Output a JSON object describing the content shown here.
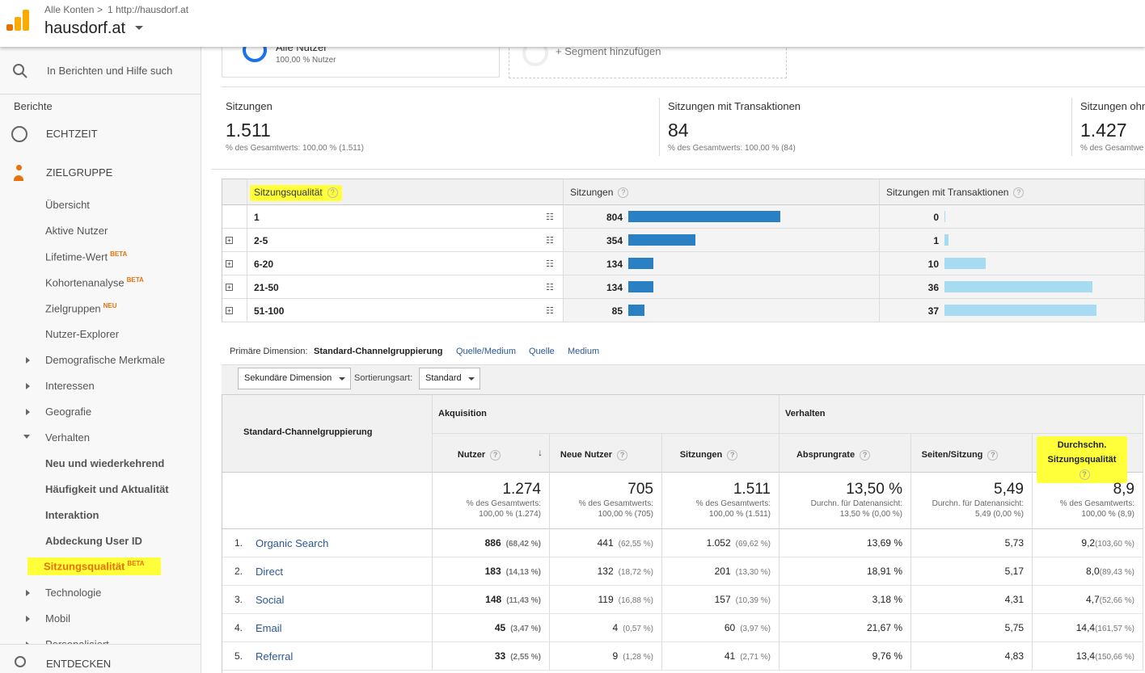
{
  "header": {
    "breadcrumb": [
      "Alle Konten",
      "1 http://hausdorf.at"
    ],
    "property": "hausdorf.at"
  },
  "sidebar": {
    "search_placeholder": "In Berichten und Hilfe such",
    "section": "Berichte",
    "realtime": "ECHTZEIT",
    "audience": {
      "label": "ZIELGRUPPE",
      "items": [
        {
          "label": "Übersicht"
        },
        {
          "label": "Aktive Nutzer"
        },
        {
          "label": "Lifetime-Wert",
          "badge": "BETA"
        },
        {
          "label": "Kohortenanalyse",
          "badge": "BETA"
        },
        {
          "label": "Zielgruppen",
          "badge": "NEU"
        },
        {
          "label": "Nutzer-Explorer"
        }
      ],
      "groups": [
        {
          "label": "Demografische Merkmale"
        },
        {
          "label": "Interessen"
        },
        {
          "label": "Geografie"
        },
        {
          "label": "Verhalten",
          "items": [
            {
              "label": "Neu und wiederkehrend"
            },
            {
              "label": "Häufigkeit und Aktualität"
            },
            {
              "label": "Interaktion"
            },
            {
              "label": "Abdeckung User ID"
            },
            {
              "label": "Sitzungsqualität",
              "badge": "BETA"
            }
          ]
        },
        {
          "label": "Technologie"
        },
        {
          "label": "Mobil"
        },
        {
          "label": "Personalisiert"
        }
      ]
    },
    "discover": "ENTDECKEN"
  },
  "segments": {
    "active": {
      "name": "Alle Nutzer",
      "sub": "100,00 % Nutzer"
    },
    "add": "+ Segment hinzufügen"
  },
  "summary": [
    {
      "label": "Sitzungen",
      "value": "1.511",
      "sub": "% des Gesamtwerts: 100,00 % (1.511)"
    },
    {
      "label": "Sitzungen mit Transaktionen",
      "value": "84",
      "sub": "% des Gesamtwerts: 100,00 % (84)"
    },
    {
      "label": "Sitzungen ohne",
      "value": "1.427",
      "sub": "% des Gesamtwe"
    }
  ],
  "quality_table": {
    "headers": [
      "Sitzungsqualität",
      "Sitzungen",
      "Sitzungen mit Transaktionen"
    ],
    "rows": [
      {
        "label": "1",
        "sessions": 804,
        "transactions": 0
      },
      {
        "label": "2-5",
        "sessions": 354,
        "transactions": 1
      },
      {
        "label": "6-20",
        "sessions": 134,
        "transactions": 10
      },
      {
        "label": "21-50",
        "sessions": 134,
        "transactions": 36
      },
      {
        "label": "51-100",
        "sessions": 85,
        "transactions": 37
      }
    ]
  },
  "primary_dimension": {
    "label": "Primäre Dimension:",
    "options": [
      "Standard-Channelgruppierung",
      "Quelle/Medium",
      "Quelle",
      "Medium"
    ]
  },
  "controls": {
    "secondary": "Sekundäre Dimension",
    "sort_label": "Sortierungsart:",
    "sort_value": "Standard"
  },
  "main_table": {
    "dimension": "Standard-Channelgruppierung",
    "groups": [
      "Akquisition",
      "Verhalten"
    ],
    "columns": [
      "Nutzer",
      "Neue Nutzer",
      "Sitzungen",
      "Absprungrate",
      "Seiten/Sitzung",
      "Durchschn. Sitzungsqualität"
    ],
    "totals": [
      {
        "value": "1.274",
        "sub1": "% des Gesamtwerts:",
        "sub2": "100,00 % (1.274)"
      },
      {
        "value": "705",
        "sub1": "% des Gesamtwerts:",
        "sub2": "100,00 % (705)"
      },
      {
        "value": "1.511",
        "sub1": "% des Gesamtwerts:",
        "sub2": "100,00 % (1.511)"
      },
      {
        "value": "13,50 %",
        "sub1": "Durchn. für Datenansicht:",
        "sub2": "13,50 % (0,00 %)"
      },
      {
        "value": "5,49",
        "sub1": "Durchn. für Datenansicht:",
        "sub2": "5,49 (0,00 %)"
      },
      {
        "value": "8,9",
        "sub1": "% des Gesamtwerts:",
        "sub2": "100,00 % (8,9)"
      }
    ],
    "rows": [
      {
        "index": "1.",
        "name": "Organic Search",
        "cells": [
          {
            "value": "886",
            "pct": "(68,42 %)"
          },
          {
            "value": "441",
            "pct": "(62,55 %)"
          },
          {
            "value": "1.052",
            "pct": "(69,62 %)"
          },
          {
            "value": "13,69 %"
          },
          {
            "value": "5,73"
          },
          {
            "value": "9,2",
            "pct": "(103,60 %)"
          }
        ]
      },
      {
        "index": "2.",
        "name": "Direct",
        "cells": [
          {
            "value": "183",
            "pct": "(14,13 %)"
          },
          {
            "value": "132",
            "pct": "(18,72 %)"
          },
          {
            "value": "201",
            "pct": "(13,30 %)"
          },
          {
            "value": "18,91 %"
          },
          {
            "value": "5,17"
          },
          {
            "value": "8,0",
            "pct": "(89,43 %)"
          }
        ]
      },
      {
        "index": "3.",
        "name": "Social",
        "cells": [
          {
            "value": "148",
            "pct": "(11,43 %)"
          },
          {
            "value": "119",
            "pct": "(16,88 %)"
          },
          {
            "value": "157",
            "pct": "(10,39 %)"
          },
          {
            "value": "3,18 %"
          },
          {
            "value": "4,31"
          },
          {
            "value": "4,7",
            "pct": "(52,66 %)"
          }
        ]
      },
      {
        "index": "4.",
        "name": "Email",
        "cells": [
          {
            "value": "45",
            "pct": "(3,47 %)"
          },
          {
            "value": "4",
            "pct": "(0,57 %)"
          },
          {
            "value": "60",
            "pct": "(3,97 %)"
          },
          {
            "value": "21,67 %"
          },
          {
            "value": "5,75"
          },
          {
            "value": "14,4",
            "pct": "(161,57 %)"
          }
        ]
      },
      {
        "index": "5.",
        "name": "Referral",
        "cells": [
          {
            "value": "33",
            "pct": "(2,55 %)"
          },
          {
            "value": "9",
            "pct": "(1,28 %)"
          },
          {
            "value": "41",
            "pct": "(2,71 %)"
          },
          {
            "value": "9,76 %"
          },
          {
            "value": "4,83"
          },
          {
            "value": "13,4",
            "pct": "(150,66 %)"
          }
        ]
      }
    ]
  }
}
